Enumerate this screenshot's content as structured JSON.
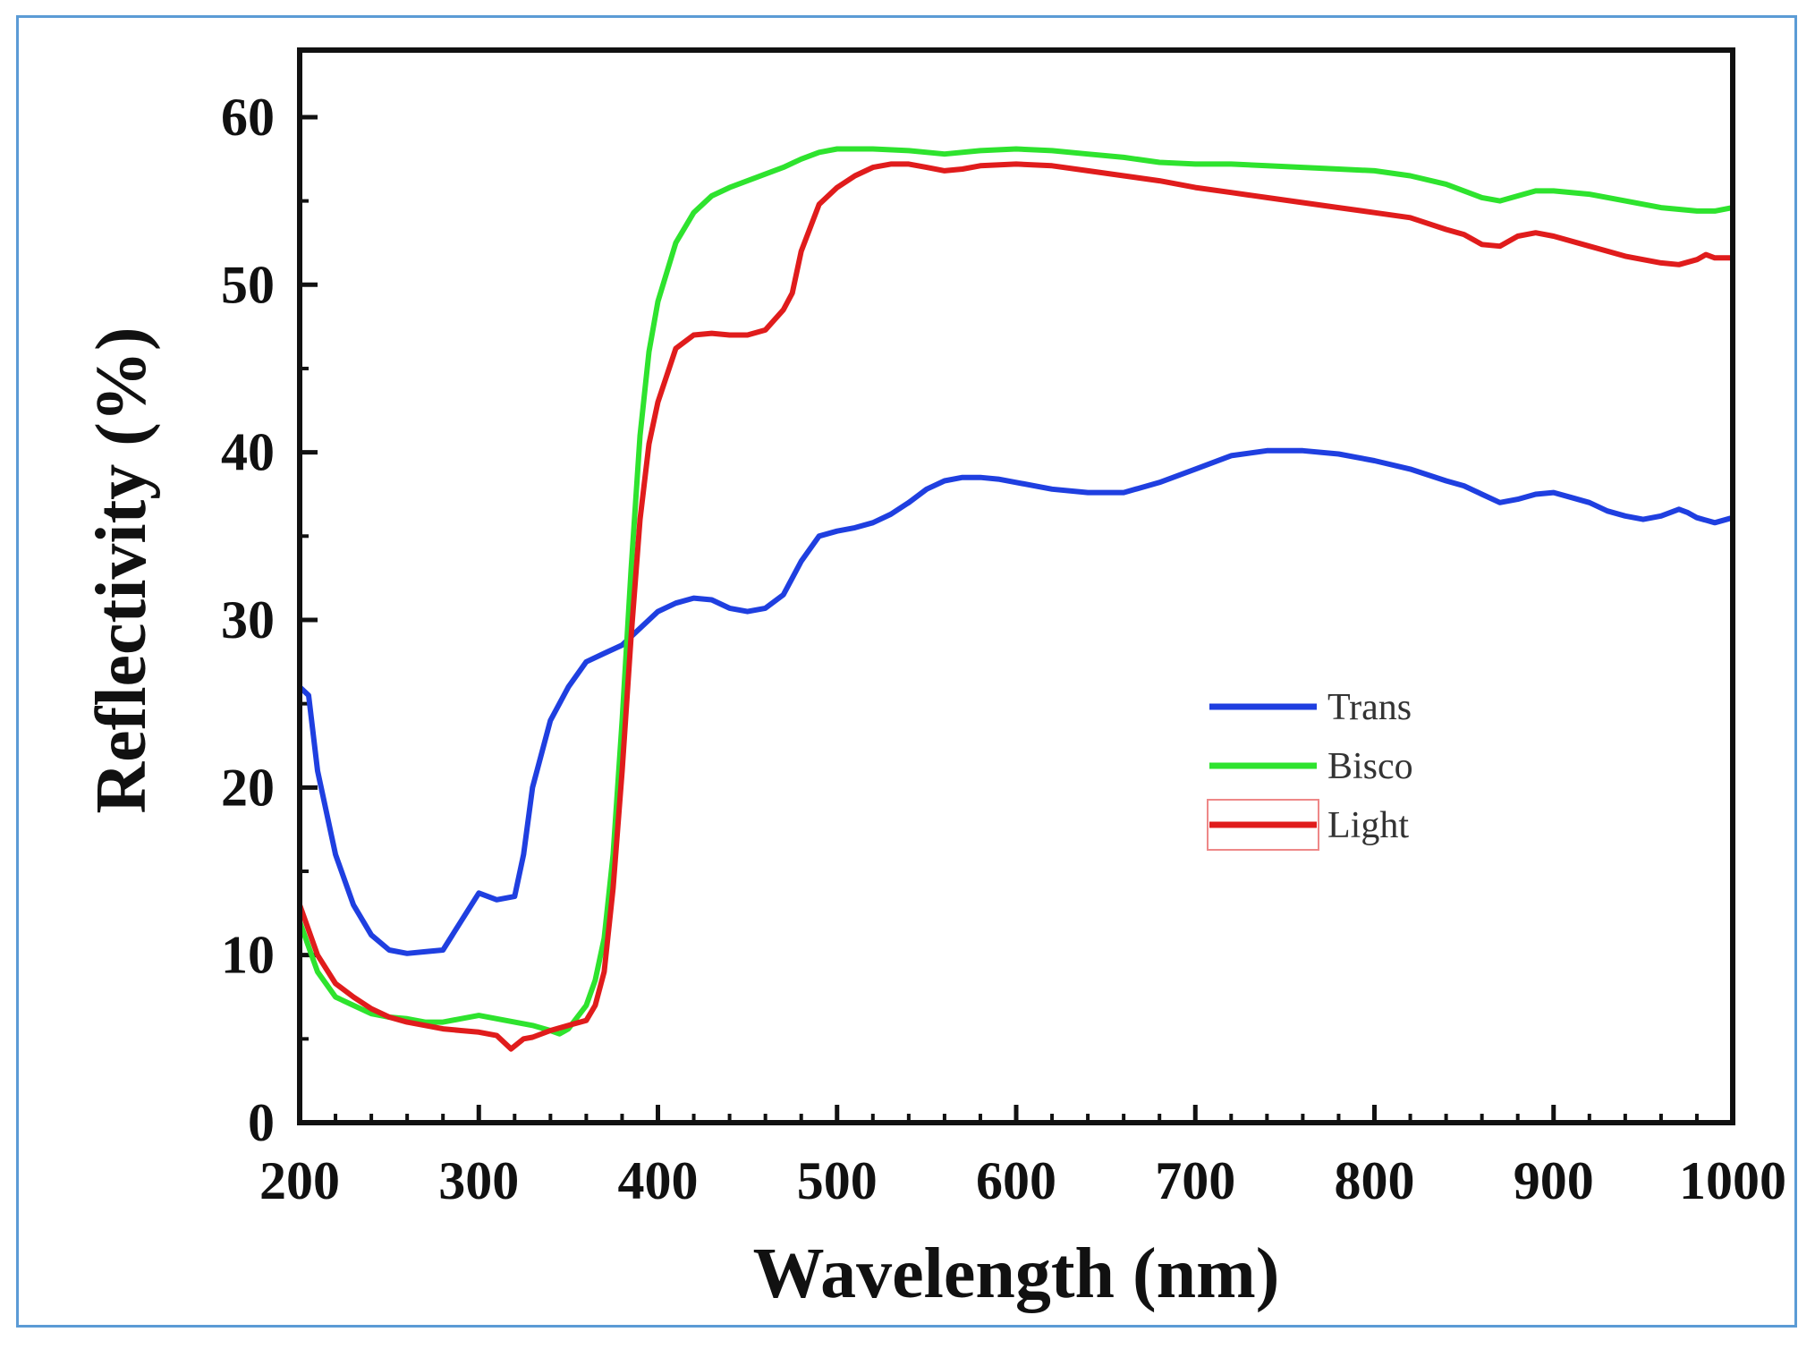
{
  "chart_data": {
    "type": "line",
    "xlabel": "Wavelength (nm)",
    "ylabel": "Reflectivity (%)",
    "xlim": [
      200,
      1000
    ],
    "ylim": [
      0,
      64
    ],
    "xticks": [
      200,
      300,
      400,
      500,
      600,
      700,
      800,
      900,
      1000
    ],
    "yticks": [
      0,
      10,
      20,
      30,
      40,
      50,
      60
    ],
    "grid": false,
    "legend_position": "center-right",
    "series": [
      {
        "name": "Trans",
        "color": "#1f3fe0",
        "x": [
          200,
          205,
          210,
          220,
          230,
          240,
          250,
          260,
          270,
          280,
          290,
          300,
          310,
          320,
          325,
          330,
          340,
          350,
          360,
          370,
          380,
          390,
          400,
          410,
          420,
          430,
          440,
          450,
          460,
          470,
          480,
          490,
          500,
          510,
          520,
          530,
          540,
          550,
          560,
          570,
          580,
          590,
          600,
          620,
          640,
          660,
          680,
          700,
          720,
          740,
          760,
          780,
          800,
          820,
          840,
          850,
          860,
          870,
          880,
          890,
          900,
          910,
          920,
          930,
          940,
          950,
          960,
          970,
          975,
          980,
          990,
          1000
        ],
        "y": [
          26,
          25.5,
          21,
          16,
          13,
          11.2,
          10.3,
          10.1,
          10.2,
          10.3,
          12,
          13.7,
          13.3,
          13.5,
          16,
          20,
          24,
          26,
          27.5,
          28,
          28.5,
          29.5,
          30.5,
          31,
          31.3,
          31.2,
          30.7,
          30.5,
          30.7,
          31.5,
          33.5,
          35,
          35.3,
          35.5,
          35.8,
          36.3,
          37,
          37.8,
          38.3,
          38.5,
          38.5,
          38.4,
          38.2,
          37.8,
          37.6,
          37.6,
          38.2,
          39,
          39.8,
          40.1,
          40.1,
          39.9,
          39.5,
          39,
          38.3,
          38,
          37.5,
          37,
          37.2,
          37.5,
          37.6,
          37.3,
          37,
          36.5,
          36.2,
          36,
          36.2,
          36.6,
          36.4,
          36.1,
          35.8,
          36.1
        ]
      },
      {
        "name": "Bisco",
        "color": "#2ee32e",
        "x": [
          200,
          210,
          220,
          230,
          240,
          250,
          260,
          270,
          280,
          290,
          300,
          310,
          320,
          330,
          340,
          345,
          350,
          360,
          365,
          370,
          375,
          380,
          385,
          390,
          395,
          400,
          410,
          420,
          430,
          440,
          450,
          460,
          470,
          480,
          490,
          500,
          520,
          540,
          560,
          580,
          600,
          620,
          640,
          660,
          680,
          700,
          720,
          740,
          760,
          780,
          800,
          820,
          840,
          860,
          870,
          880,
          890,
          900,
          920,
          940,
          960,
          980,
          990,
          1000
        ],
        "y": [
          12,
          9,
          7.5,
          7,
          6.5,
          6.3,
          6.2,
          6,
          6,
          6.2,
          6.4,
          6.2,
          6,
          5.8,
          5.5,
          5.3,
          5.6,
          7,
          8.5,
          11,
          16,
          24,
          33,
          41,
          46,
          49,
          52.5,
          54.3,
          55.3,
          55.8,
          56.2,
          56.6,
          57,
          57.5,
          57.9,
          58.1,
          58.1,
          58,
          57.8,
          58,
          58.1,
          58,
          57.8,
          57.6,
          57.3,
          57.2,
          57.2,
          57.1,
          57,
          56.9,
          56.8,
          56.5,
          56,
          55.2,
          55,
          55.3,
          55.6,
          55.6,
          55.4,
          55,
          54.6,
          54.4,
          54.4,
          54.6
        ]
      },
      {
        "name": "Light",
        "color": "#e01c1c",
        "x": [
          200,
          210,
          220,
          230,
          240,
          250,
          260,
          270,
          280,
          290,
          300,
          310,
          318,
          325,
          330,
          340,
          350,
          360,
          365,
          370,
          375,
          380,
          385,
          390,
          395,
          400,
          410,
          420,
          430,
          440,
          450,
          460,
          470,
          475,
          480,
          490,
          500,
          510,
          520,
          530,
          540,
          550,
          560,
          570,
          580,
          600,
          620,
          640,
          660,
          680,
          700,
          720,
          740,
          760,
          780,
          800,
          820,
          840,
          850,
          860,
          870,
          880,
          890,
          900,
          920,
          940,
          960,
          970,
          980,
          985,
          990,
          1000
        ],
        "y": [
          13,
          10,
          8.3,
          7.5,
          6.8,
          6.3,
          6,
          5.8,
          5.6,
          5.5,
          5.4,
          5.2,
          4.4,
          5,
          5.1,
          5.5,
          5.8,
          6.1,
          7,
          9,
          14,
          21,
          29,
          36,
          40.5,
          43,
          46.2,
          47,
          47.1,
          47,
          47,
          47.3,
          48.5,
          49.5,
          52,
          54.8,
          55.8,
          56.5,
          57,
          57.2,
          57.2,
          57,
          56.8,
          56.9,
          57.1,
          57.2,
          57.1,
          56.8,
          56.5,
          56.2,
          55.8,
          55.5,
          55.2,
          54.9,
          54.6,
          54.3,
          54,
          53.3,
          53,
          52.4,
          52.3,
          52.9,
          53.1,
          52.9,
          52.3,
          51.7,
          51.3,
          51.2,
          51.5,
          51.8,
          51.6,
          51.6
        ]
      }
    ]
  }
}
